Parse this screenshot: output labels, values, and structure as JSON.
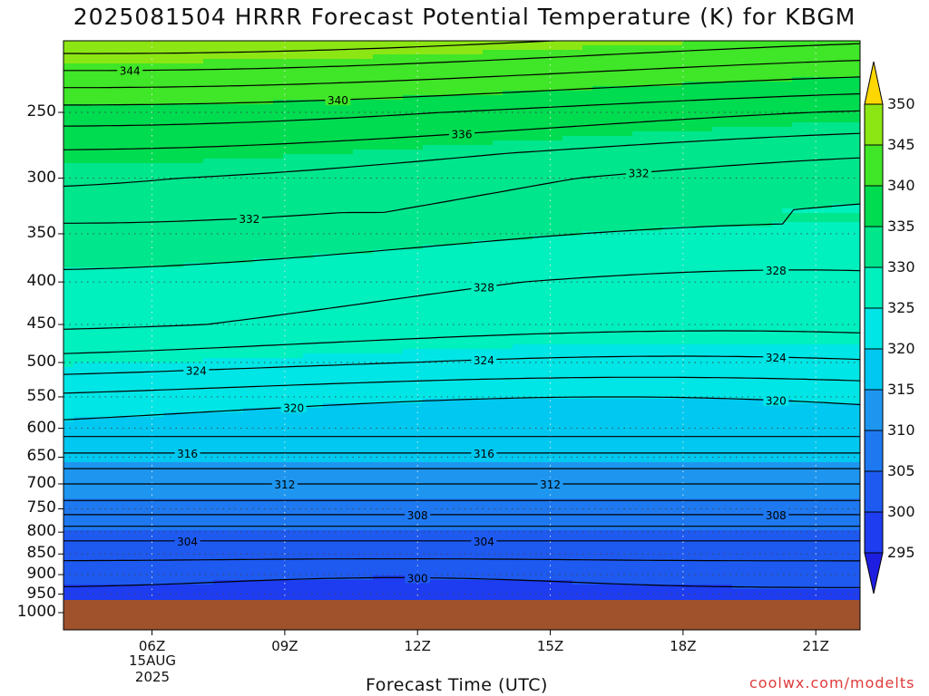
{
  "title": "2025081504 HRRR Forecast Potential Temperature (K) for KBGM",
  "x_axis_title": "Forecast Time (UTC)",
  "credit": "coolwx.com/modelts",
  "x_date_label": [
    "15AUG",
    "2025"
  ],
  "colorbar_ticks": [
    "295",
    "300",
    "305",
    "310",
    "315",
    "320",
    "325",
    "330",
    "335",
    "340",
    "345",
    "350"
  ],
  "colors": {
    "ground": "#a0522d",
    "contour": "#000000",
    "credit": "#e03a3a",
    "fills": [
      "#1e1ee0",
      "#1e3cf0",
      "#1e5af0",
      "#1e78f0",
      "#1e96f0",
      "#00c8f0",
      "#00e6e6",
      "#00f0be",
      "#00e68c",
      "#00dc50",
      "#40e628",
      "#8ce614",
      "#c8f000",
      "#f0f000",
      "#ffd700"
    ]
  },
  "chart_data": {
    "type": "heatmap",
    "title": "2025081504 HRRR Forecast Potential Temperature (K) for KBGM",
    "xlabel": "Forecast Time (UTC)",
    "ylabel": "",
    "x_ticks": [
      "06Z",
      "09Z",
      "12Z",
      "15Z",
      "18Z",
      "21Z"
    ],
    "x_tick_hours": [
      6,
      9,
      12,
      15,
      18,
      21
    ],
    "xlim": [
      4,
      22
    ],
    "y_ticks": [
      250,
      300,
      350,
      400,
      450,
      500,
      550,
      600,
      650,
      700,
      750,
      800,
      850,
      900,
      950,
      1000
    ],
    "ylim": [
      1000,
      200
    ],
    "y_scale": "log-pressure (hPa)",
    "grid": true,
    "colorbar_range": [
      295,
      350
    ],
    "colorbar_step": 5,
    "contour_labels": [
      "344",
      "340",
      "336",
      "332",
      "332",
      "328",
      "328",
      "324",
      "324",
      "324",
      "320",
      "320",
      "316",
      "316",
      "312",
      "312",
      "308",
      "308",
      "304",
      "304",
      "300"
    ],
    "contour_levels": [
      300,
      302,
      304,
      306,
      308,
      310,
      312,
      314,
      316,
      318,
      320,
      322,
      324,
      326,
      328,
      330,
      332,
      334,
      336,
      338,
      340,
      342,
      344,
      346
    ],
    "profile_pressure": [
      200,
      230,
      250,
      280,
      300,
      330,
      350,
      400,
      450,
      500,
      550,
      600,
      650,
      700,
      750,
      800,
      850,
      900,
      950,
      970
    ],
    "profile_theta": [
      347,
      341,
      337.5,
      334,
      332.5,
      331.5,
      330.5,
      328.5,
      327.5,
      324.5,
      321,
      319,
      315.5,
      312,
      309,
      305,
      302.5,
      301,
      299.5,
      299
    ]
  }
}
